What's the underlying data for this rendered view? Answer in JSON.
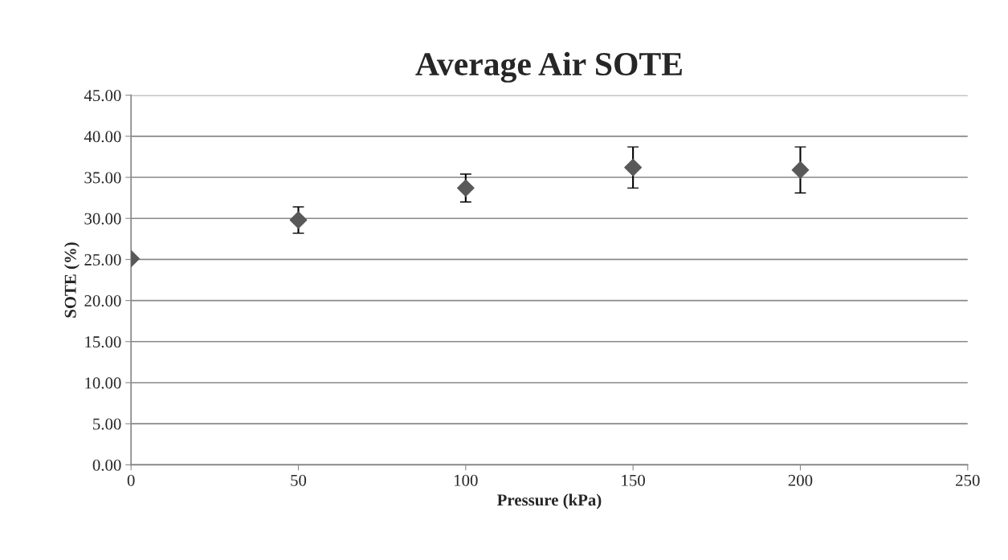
{
  "chart_data": {
    "type": "scatter",
    "title": "Average Air SOTE",
    "xlabel": "Pressure (kPa)",
    "ylabel": "SOTE (%)",
    "x": [
      0,
      50,
      100,
      150,
      200
    ],
    "series": [
      {
        "color": "#595959",
        "values": [
          25.1,
          29.8,
          33.7,
          36.2,
          35.9
        ],
        "errors": [
          null,
          1.6,
          1.7,
          2.5,
          2.8
        ]
      }
    ],
    "xlim": [
      0,
      250
    ],
    "xticks": [
      0,
      50,
      100,
      150,
      200,
      250
    ],
    "ylim": [
      0,
      45
    ],
    "yticks": [
      {
        "value": 0,
        "label": "0.00"
      },
      {
        "value": 5,
        "label": "5.00"
      },
      {
        "value": 10,
        "label": "10.00"
      },
      {
        "value": 15,
        "label": "15.00"
      },
      {
        "value": 20,
        "label": "20.00"
      },
      {
        "value": 25,
        "label": "25.00"
      },
      {
        "value": 30,
        "label": "30.00"
      },
      {
        "value": 35,
        "label": "35.00"
      },
      {
        "value": 40,
        "label": "40.00"
      },
      {
        "value": 45,
        "label": "45.00"
      }
    ],
    "grid": "y",
    "marker": "diamond",
    "legend": false
  }
}
